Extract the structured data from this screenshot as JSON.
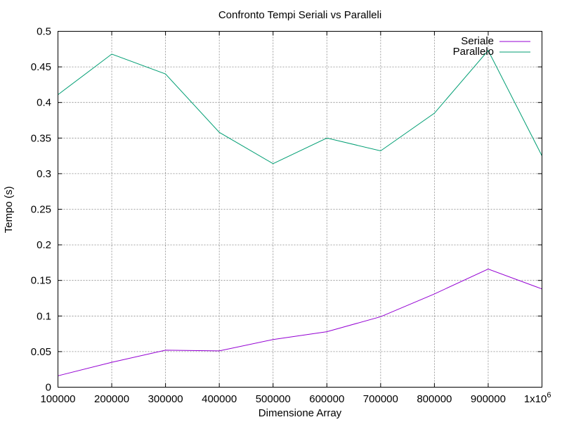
{
  "chart_data": {
    "type": "line",
    "title": "Confronto Tempi Seriali vs Paralleli",
    "xlabel": "Dimensione Array",
    "ylabel": "Tempo (s)",
    "x": [
      100000,
      200000,
      300000,
      400000,
      500000,
      600000,
      700000,
      800000,
      900000,
      1000000
    ],
    "xlim": [
      100000,
      1000000
    ],
    "ylim": [
      0,
      0.5
    ],
    "grid": true,
    "legend_position": "top-right",
    "x_tick_labels": [
      "100000",
      "200000",
      "300000",
      "400000",
      "500000",
      "600000",
      "700000",
      "800000",
      "900000",
      "1x10"
    ],
    "x_tick_last_superscript": "6",
    "y_tick_labels": [
      "0",
      "0.05",
      "0.1",
      "0.15",
      "0.2",
      "0.25",
      "0.3",
      "0.35",
      "0.4",
      "0.45",
      "0.5"
    ],
    "series": [
      {
        "name": "Seriale",
        "color": "#9400d3",
        "values": [
          0.016,
          0.035,
          0.052,
          0.051,
          0.067,
          0.078,
          0.099,
          0.131,
          0.166,
          0.138
        ]
      },
      {
        "name": "Parallelo",
        "color": "#009e73",
        "values": [
          0.411,
          0.468,
          0.44,
          0.358,
          0.314,
          0.35,
          0.332,
          0.385,
          0.473,
          0.325
        ]
      }
    ]
  }
}
